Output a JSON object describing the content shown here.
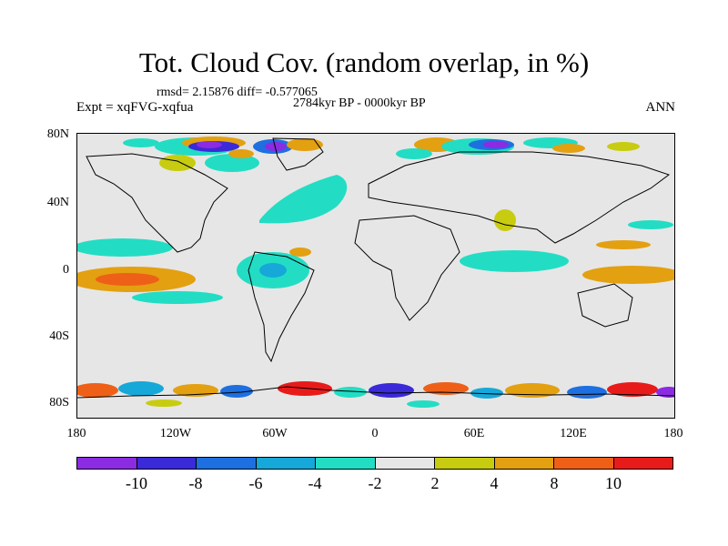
{
  "title": "Tot. Cloud Cov. (random overlap, in %)",
  "stats": "rmsd= 2.15876 diff= -0.577065",
  "period": "2784kyr BP - 0000kyr BP",
  "experiment": "Expt = xqFVG-xqfua",
  "season": "ANN",
  "lat_ticks": [
    "80N",
    "40N",
    "0",
    "40S",
    "80S"
  ],
  "lon_ticks": [
    "180",
    "120W",
    "60W",
    "0",
    "60E",
    "120E",
    "180"
  ],
  "colorbar": {
    "labels": [
      "-10",
      "-8",
      "-6",
      "-4",
      "-2",
      "2",
      "4",
      "8",
      "10"
    ],
    "colors": [
      "#8b2be2",
      "#3a2ad8",
      "#1e6fe0",
      "#16a8d8",
      "#22ddc4",
      "#e6e6e6",
      "#c8cc10",
      "#e3a010",
      "#ee6018",
      "#e81b1b"
    ]
  }
}
